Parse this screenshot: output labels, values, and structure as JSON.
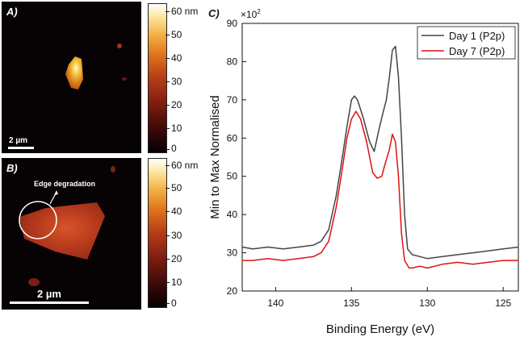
{
  "panel_a": {
    "label": "A)",
    "scale_bar": "2 µm"
  },
  "panel_b": {
    "label": "B)",
    "scale_bar": "2 µm",
    "annotation": "Edge degradation"
  },
  "colorbar": {
    "ticks": [
      "60 nm",
      "50",
      "40",
      "30",
      "20",
      "10",
      "0"
    ]
  },
  "colors": {
    "day1": "#444444",
    "day7": "#e01010"
  },
  "chart_data": {
    "type": "line",
    "panel_label": "C)",
    "title": "",
    "xlabel": "Binding Energy (eV)",
    "ylabel": "Min to Max Normalised",
    "y_multiplier": "×10",
    "y_multiplier_exp": "2",
    "xlim": [
      142.2,
      124.0
    ],
    "ylim": [
      20,
      90
    ],
    "xticks": [
      140,
      135,
      130,
      125
    ],
    "yticks": [
      20,
      30,
      40,
      50,
      60,
      70,
      80,
      90
    ],
    "legend": {
      "placement": "top-right"
    },
    "series": [
      {
        "name": "Day 1 (P2p)",
        "color": "#444444",
        "x": [
          142.2,
          141.5,
          140.5,
          139.5,
          138.5,
          137.5,
          137.0,
          136.5,
          136.0,
          135.6,
          135.3,
          135.0,
          134.8,
          134.6,
          134.2,
          133.8,
          133.5,
          133.2,
          132.9,
          132.7,
          132.5,
          132.3,
          132.1,
          131.9,
          131.7,
          131.5,
          131.3,
          131.0,
          130.5,
          130.0,
          129.0,
          128.0,
          127.0,
          126.0,
          125.0,
          124.0
        ],
        "y": [
          31.5,
          31.0,
          31.5,
          31.0,
          31.5,
          32.0,
          33.0,
          36.0,
          45.0,
          55.0,
          63.0,
          70.0,
          71.0,
          70.0,
          65.0,
          59.0,
          56.5,
          62.0,
          67.0,
          70.0,
          76.0,
          83.0,
          84.0,
          76.0,
          60.0,
          40.0,
          31.0,
          29.5,
          29.0,
          28.5,
          29.0,
          29.5,
          30.0,
          30.5,
          31.0,
          31.5
        ]
      },
      {
        "name": "Day 7 (P2p)",
        "color": "#e01010",
        "x": [
          142.2,
          141.5,
          140.5,
          139.5,
          138.5,
          137.5,
          137.0,
          136.5,
          136.0,
          135.6,
          135.3,
          135.0,
          134.7,
          134.4,
          134.0,
          133.6,
          133.3,
          133.0,
          132.8,
          132.5,
          132.3,
          132.1,
          131.9,
          131.7,
          131.5,
          131.2,
          131.0,
          130.5,
          130.0,
          129.0,
          128.0,
          127.0,
          126.0,
          125.0,
          124.0
        ],
        "y": [
          28.0,
          28.0,
          28.5,
          28.0,
          28.5,
          29.0,
          30.0,
          33.0,
          42.0,
          52.0,
          60.0,
          65.0,
          67.0,
          65.0,
          59.0,
          51.0,
          49.5,
          50.0,
          53.0,
          57.0,
          61.0,
          59.0,
          50.0,
          35.0,
          28.0,
          26.0,
          26.0,
          26.5,
          26.0,
          27.0,
          27.5,
          27.0,
          27.5,
          28.0,
          28.0
        ]
      }
    ]
  }
}
